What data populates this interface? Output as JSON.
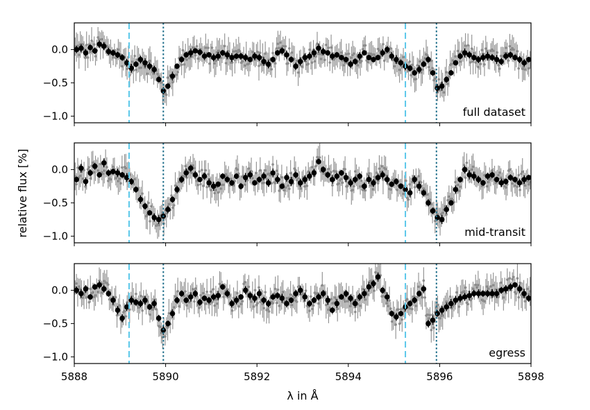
{
  "chart_data": {
    "type": "scatter",
    "description": "Three stacked panels sharing the x-axis; grey = unbinned points with error bars, black = binned points.",
    "xlabel": "λ in Å",
    "ylabel": "relative flux [%]",
    "xlim": [
      5888,
      5898
    ],
    "ylim": [
      -1.1,
      0.4
    ],
    "xticks": [
      5888,
      5890,
      5892,
      5894,
      5896,
      5898
    ],
    "yticks": [
      -1.0,
      -0.5,
      0.0
    ],
    "grid": false,
    "colors": {
      "unbinned": "#8c8c8c",
      "binned": "#000000",
      "dashed_line": "#5bc8ea",
      "dotted_line": "#1f6f8b"
    },
    "vertical_lines": [
      {
        "x": 5889.2,
        "style": "dashed",
        "color": "#5bc8ea"
      },
      {
        "x": 5889.95,
        "style": "dotted",
        "color": "#1f6f8b"
      },
      {
        "x": 5895.25,
        "style": "dashed",
        "color": "#5bc8ea"
      },
      {
        "x": 5895.93,
        "style": "dotted",
        "color": "#1f6f8b"
      }
    ],
    "panels": [
      {
        "label": "full dataset",
        "binned": {
          "x": [
            5888.05,
            5888.15,
            5888.25,
            5888.35,
            5888.45,
            5888.55,
            5888.65,
            5888.75,
            5888.85,
            5888.95,
            5889.05,
            5889.15,
            5889.25,
            5889.35,
            5889.45,
            5889.55,
            5889.65,
            5889.75,
            5889.85,
            5889.95,
            5890.05,
            5890.15,
            5890.25,
            5890.35,
            5890.45,
            5890.55,
            5890.65,
            5890.75,
            5890.85,
            5890.95,
            5891.05,
            5891.15,
            5891.25,
            5891.35,
            5891.45,
            5891.55,
            5891.65,
            5891.75,
            5891.85,
            5891.95,
            5892.05,
            5892.15,
            5892.25,
            5892.35,
            5892.45,
            5892.55,
            5892.65,
            5892.75,
            5892.85,
            5892.95,
            5893.05,
            5893.15,
            5893.25,
            5893.35,
            5893.45,
            5893.55,
            5893.65,
            5893.75,
            5893.85,
            5893.95,
            5894.05,
            5894.15,
            5894.25,
            5894.35,
            5894.45,
            5894.55,
            5894.65,
            5894.75,
            5894.85,
            5894.95,
            5895.05,
            5895.15,
            5895.25,
            5895.35,
            5895.45,
            5895.55,
            5895.65,
            5895.75,
            5895.85,
            5895.95,
            5896.05,
            5896.15,
            5896.25,
            5896.35,
            5896.45,
            5896.55,
            5896.65,
            5896.75,
            5896.85,
            5896.95,
            5897.05,
            5897.15,
            5897.25,
            5897.35,
            5897.45,
            5897.55,
            5897.65,
            5897.75,
            5897.85,
            5897.95
          ],
          "y": [
            0.0,
            0.02,
            -0.05,
            0.03,
            -0.02,
            0.08,
            0.05,
            -0.03,
            -0.05,
            -0.08,
            -0.12,
            -0.2,
            -0.28,
            -0.22,
            -0.15,
            -0.2,
            -0.25,
            -0.3,
            -0.45,
            -0.62,
            -0.55,
            -0.4,
            -0.25,
            -0.15,
            -0.08,
            -0.05,
            -0.02,
            -0.04,
            -0.1,
            -0.08,
            -0.12,
            -0.1,
            -0.05,
            -0.08,
            -0.12,
            -0.1,
            -0.1,
            -0.12,
            -0.15,
            -0.1,
            -0.12,
            -0.18,
            -0.22,
            -0.15,
            -0.05,
            -0.02,
            -0.08,
            -0.15,
            -0.25,
            -0.18,
            -0.12,
            -0.1,
            -0.05,
            0.02,
            -0.03,
            -0.05,
            -0.1,
            -0.08,
            -0.12,
            -0.15,
            -0.22,
            -0.18,
            -0.1,
            -0.05,
            -0.12,
            -0.15,
            -0.12,
            -0.05,
            0.0,
            -0.1,
            -0.15,
            -0.2,
            -0.25,
            -0.28,
            -0.35,
            -0.3,
            -0.22,
            -0.15,
            -0.35,
            -0.58,
            -0.55,
            -0.45,
            -0.35,
            -0.2,
            -0.1,
            -0.05,
            -0.08,
            -0.12,
            -0.15,
            -0.12,
            -0.1,
            -0.12,
            -0.15,
            -0.18,
            -0.1,
            -0.08,
            -0.12,
            -0.15,
            -0.2,
            -0.15
          ]
        }
      },
      {
        "label": "mid-transit",
        "binned": {
          "x": [
            5888.05,
            5888.15,
            5888.25,
            5888.35,
            5888.45,
            5888.55,
            5888.65,
            5888.75,
            5888.85,
            5888.95,
            5889.05,
            5889.15,
            5889.25,
            5889.35,
            5889.45,
            5889.55,
            5889.65,
            5889.75,
            5889.85,
            5889.95,
            5890.05,
            5890.15,
            5890.25,
            5890.35,
            5890.45,
            5890.55,
            5890.65,
            5890.75,
            5890.85,
            5890.95,
            5891.05,
            5891.15,
            5891.25,
            5891.35,
            5891.45,
            5891.55,
            5891.65,
            5891.75,
            5891.85,
            5891.95,
            5892.05,
            5892.15,
            5892.25,
            5892.35,
            5892.45,
            5892.55,
            5892.65,
            5892.75,
            5892.85,
            5892.95,
            5893.05,
            5893.15,
            5893.25,
            5893.35,
            5893.45,
            5893.55,
            5893.65,
            5893.75,
            5893.85,
            5893.95,
            5894.05,
            5894.15,
            5894.25,
            5894.35,
            5894.45,
            5894.55,
            5894.65,
            5894.75,
            5894.85,
            5894.95,
            5895.05,
            5895.15,
            5895.25,
            5895.35,
            5895.45,
            5895.55,
            5895.65,
            5895.75,
            5895.85,
            5895.95,
            5896.05,
            5896.15,
            5896.25,
            5896.35,
            5896.45,
            5896.55,
            5896.65,
            5896.75,
            5896.85,
            5896.95,
            5897.05,
            5897.15,
            5897.25,
            5897.35,
            5897.45,
            5897.55,
            5897.65,
            5897.75,
            5897.85,
            5897.95
          ],
          "y": [
            -0.15,
            0.02,
            -0.18,
            -0.05,
            0.05,
            -0.08,
            0.1,
            -0.05,
            -0.03,
            -0.05,
            -0.08,
            -0.12,
            -0.18,
            -0.3,
            -0.45,
            -0.55,
            -0.65,
            -0.72,
            -0.75,
            -0.7,
            -0.6,
            -0.45,
            -0.3,
            -0.15,
            -0.05,
            0.02,
            -0.08,
            -0.15,
            -0.1,
            -0.2,
            -0.25,
            -0.22,
            -0.1,
            -0.15,
            -0.2,
            -0.1,
            -0.25,
            -0.12,
            -0.08,
            -0.2,
            -0.15,
            -0.1,
            -0.2,
            -0.05,
            -0.15,
            -0.25,
            -0.12,
            -0.18,
            -0.08,
            -0.2,
            -0.15,
            -0.1,
            -0.05,
            0.12,
            0.0,
            -0.08,
            -0.15,
            -0.1,
            -0.05,
            -0.12,
            -0.2,
            -0.15,
            -0.1,
            -0.25,
            -0.15,
            -0.2,
            -0.12,
            -0.08,
            -0.15,
            -0.22,
            -0.18,
            -0.25,
            -0.3,
            -0.35,
            -0.15,
            -0.25,
            -0.35,
            -0.5,
            -0.62,
            -0.72,
            -0.75,
            -0.6,
            -0.5,
            -0.3,
            -0.15,
            0.0,
            -0.08,
            -0.1,
            -0.15,
            -0.2,
            -0.1,
            -0.08,
            -0.15,
            -0.2,
            -0.18,
            -0.12,
            -0.15,
            -0.2,
            -0.15,
            -0.12
          ]
        }
      },
      {
        "label": "egress",
        "binned": {
          "x": [
            5888.05,
            5888.15,
            5888.25,
            5888.35,
            5888.45,
            5888.55,
            5888.65,
            5888.75,
            5888.85,
            5888.95,
            5889.05,
            5889.15,
            5889.25,
            5889.35,
            5889.45,
            5889.55,
            5889.65,
            5889.75,
            5889.85,
            5889.95,
            5890.05,
            5890.15,
            5890.25,
            5890.35,
            5890.45,
            5890.55,
            5890.65,
            5890.75,
            5890.85,
            5890.95,
            5891.05,
            5891.15,
            5891.25,
            5891.35,
            5891.45,
            5891.55,
            5891.65,
            5891.75,
            5891.85,
            5891.95,
            5892.05,
            5892.15,
            5892.25,
            5892.35,
            5892.45,
            5892.55,
            5892.65,
            5892.75,
            5892.85,
            5892.95,
            5893.05,
            5893.15,
            5893.25,
            5893.35,
            5893.45,
            5893.55,
            5893.65,
            5893.75,
            5893.85,
            5893.95,
            5894.05,
            5894.15,
            5894.25,
            5894.35,
            5894.45,
            5894.55,
            5894.65,
            5894.75,
            5894.85,
            5894.95,
            5895.05,
            5895.15,
            5895.25,
            5895.35,
            5895.45,
            5895.55,
            5895.65,
            5895.75,
            5895.85,
            5895.95,
            5896.05,
            5896.15,
            5896.25,
            5896.35,
            5896.45,
            5896.55,
            5896.65,
            5896.75,
            5896.85,
            5896.95,
            5897.05,
            5897.15,
            5897.25,
            5897.35,
            5897.45,
            5897.55,
            5897.65,
            5897.75,
            5897.85,
            5897.95
          ],
          "y": [
            0.0,
            -0.05,
            0.02,
            -0.1,
            0.05,
            0.08,
            0.02,
            -0.05,
            -0.15,
            -0.3,
            -0.42,
            -0.25,
            -0.15,
            -0.18,
            -0.2,
            -0.15,
            -0.25,
            -0.2,
            -0.42,
            -0.6,
            -0.5,
            -0.35,
            -0.15,
            -0.05,
            -0.15,
            -0.1,
            -0.05,
            -0.18,
            -0.12,
            -0.15,
            -0.1,
            -0.08,
            0.05,
            -0.05,
            -0.2,
            -0.15,
            -0.1,
            0.0,
            -0.08,
            -0.12,
            -0.05,
            -0.15,
            -0.2,
            -0.1,
            -0.08,
            -0.12,
            -0.2,
            -0.15,
            -0.05,
            0.0,
            -0.1,
            -0.2,
            -0.15,
            -0.1,
            -0.05,
            -0.15,
            -0.3,
            -0.2,
            -0.1,
            -0.05,
            -0.12,
            -0.2,
            -0.1,
            -0.05,
            0.05,
            0.1,
            0.2,
            0.0,
            -0.1,
            -0.35,
            -0.4,
            -0.35,
            -0.25,
            -0.2,
            -0.15,
            -0.05,
            0.02,
            -0.5,
            -0.45,
            -0.35,
            -0.3,
            -0.25,
            -0.2,
            -0.15,
            -0.12,
            -0.1,
            -0.08,
            -0.05,
            -0.05,
            -0.05,
            -0.05,
            -0.05,
            -0.05,
            0.0,
            0.02,
            0.05,
            0.08,
            0.02,
            -0.05,
            -0.12
          ]
        }
      }
    ]
  }
}
